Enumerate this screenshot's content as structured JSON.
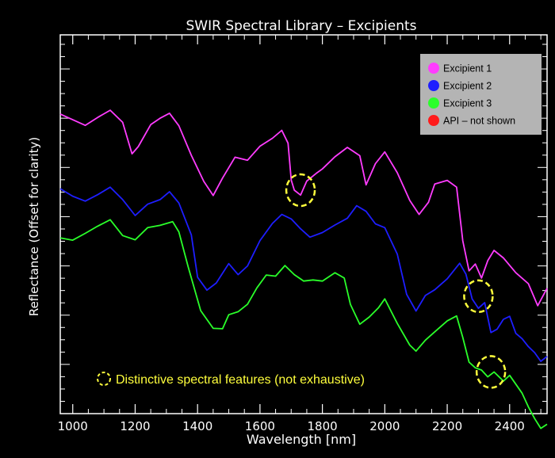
{
  "chart_data": {
    "type": "line",
    "title": "SWIR Spectral Library –  Excipients",
    "xlabel": "Wavelength [nm]",
    "ylabel": "Reflectance (Offset for clarity)",
    "xlim": [
      960,
      2520
    ],
    "ylim": [
      0,
      100
    ],
    "x_ticks": [
      1000,
      1200,
      1400,
      1600,
      1800,
      2000,
      2200,
      2400
    ],
    "x_tick_labels": [
      "1000",
      "1200",
      "1400",
      "1600",
      "1800",
      "2000",
      "2200",
      "2400"
    ],
    "background": "#000000",
    "legend_position": "top-right",
    "legend": [
      {
        "name": "Excipient 1",
        "color": "#ff3cff"
      },
      {
        "name": "Excipient 2",
        "color": "#1e1eff"
      },
      {
        "name": "Excipient 3",
        "color": "#2aff2a"
      },
      {
        "name": "API – not shown",
        "color": "#ff1a1a"
      }
    ],
    "series": [
      {
        "name": "Excipient 1",
        "color": "#ff3cff",
        "x": [
          960,
          1000,
          1040,
          1080,
          1120,
          1160,
          1190,
          1210,
          1250,
          1280,
          1310,
          1340,
          1380,
          1420,
          1450,
          1480,
          1520,
          1560,
          1600,
          1640,
          1670,
          1690,
          1700,
          1710,
          1730,
          1750,
          1780,
          1800,
          1840,
          1880,
          1920,
          1940,
          1970,
          2000,
          2040,
          2080,
          2110,
          2140,
          2160,
          2200,
          2230,
          2250,
          2270,
          2290,
          2310,
          2330,
          2350,
          2380,
          2420,
          2460,
          2490,
          2520
        ],
        "y": [
          79.1,
          77.6,
          76.1,
          78.2,
          80.1,
          76.9,
          68.6,
          70.5,
          76.3,
          78.0,
          79.3,
          76.0,
          68.2,
          61.3,
          57.6,
          62.2,
          67.7,
          66.9,
          70.6,
          72.7,
          74.8,
          71.4,
          61.7,
          59.0,
          57.7,
          61.4,
          63.4,
          64.6,
          67.8,
          70.3,
          68.1,
          60.4,
          66.0,
          69.1,
          63.6,
          56.3,
          52.6,
          55.8,
          60.6,
          61.6,
          59.8,
          45.6,
          37.7,
          39.5,
          35.8,
          40.4,
          43.1,
          41.1,
          37.2,
          34.3,
          28.5,
          33.1
        ]
      },
      {
        "name": "Excipient 2",
        "color": "#1e1eff",
        "x": [
          960,
          1000,
          1040,
          1080,
          1120,
          1160,
          1200,
          1240,
          1280,
          1310,
          1340,
          1380,
          1400,
          1430,
          1460,
          1500,
          1530,
          1560,
          1600,
          1640,
          1670,
          1700,
          1730,
          1760,
          1800,
          1840,
          1880,
          1910,
          1940,
          1970,
          2000,
          2040,
          2070,
          2100,
          2130,
          2160,
          2200,
          2240,
          2260,
          2280,
          2300,
          2320,
          2340,
          2360,
          2380,
          2400,
          2420,
          2440,
          2460,
          2480,
          2500,
          2520
        ],
        "y": [
          59.4,
          57.4,
          56.1,
          57.8,
          59.8,
          56.5,
          52.3,
          55.3,
          56.5,
          58.6,
          55.6,
          47.2,
          36.0,
          32.6,
          34.5,
          39.6,
          36.7,
          39.0,
          45.7,
          50.2,
          52.6,
          51.4,
          48.8,
          46.6,
          47.8,
          49.8,
          51.6,
          54.9,
          53.4,
          50.1,
          49.1,
          42.1,
          31.5,
          27.1,
          31.2,
          32.7,
          35.6,
          39.7,
          36.8,
          30.3,
          27.8,
          29.3,
          21.4,
          22.3,
          24.9,
          25.7,
          21.2,
          19.8,
          17.7,
          16.1,
          13.8,
          15.1
        ]
      },
      {
        "name": "Excipient 3",
        "color": "#2aff2a",
        "x": [
          960,
          1000,
          1040,
          1080,
          1120,
          1160,
          1200,
          1240,
          1280,
          1320,
          1340,
          1370,
          1410,
          1450,
          1480,
          1500,
          1530,
          1560,
          1590,
          1620,
          1650,
          1680,
          1710,
          1740,
          1770,
          1800,
          1840,
          1870,
          1890,
          1920,
          1950,
          1980,
          2000,
          2040,
          2080,
          2100,
          2130,
          2160,
          2200,
          2230,
          2250,
          2270,
          2290,
          2310,
          2330,
          2350,
          2380,
          2400,
          2440,
          2460,
          2480,
          2500,
          2520
        ],
        "y": [
          46.4,
          45.8,
          47.6,
          49.5,
          51.2,
          47.0,
          45.9,
          49.1,
          49.7,
          50.7,
          48.0,
          38.7,
          27.2,
          22.5,
          22.4,
          26.1,
          26.9,
          28.9,
          33.2,
          36.6,
          36.3,
          39.1,
          36.7,
          35.0,
          35.3,
          35.0,
          37.2,
          35.8,
          28.8,
          23.6,
          25.5,
          28.0,
          30.3,
          23.8,
          18.1,
          16.5,
          19.4,
          21.6,
          24.5,
          25.8,
          20.1,
          13.6,
          12.1,
          11.5,
          9.7,
          11.0,
          8.6,
          10.1,
          5.4,
          1.8,
          -1.3,
          -3.9,
          -2.8
        ]
      }
    ],
    "annotations": {
      "note": "Distinctive spectral features (not exhaustive)",
      "circles": [
        {
          "x": 1730,
          "y": 59
        },
        {
          "x": 2300,
          "y": 31
        },
        {
          "x": 2340,
          "y": 11
        }
      ]
    }
  }
}
